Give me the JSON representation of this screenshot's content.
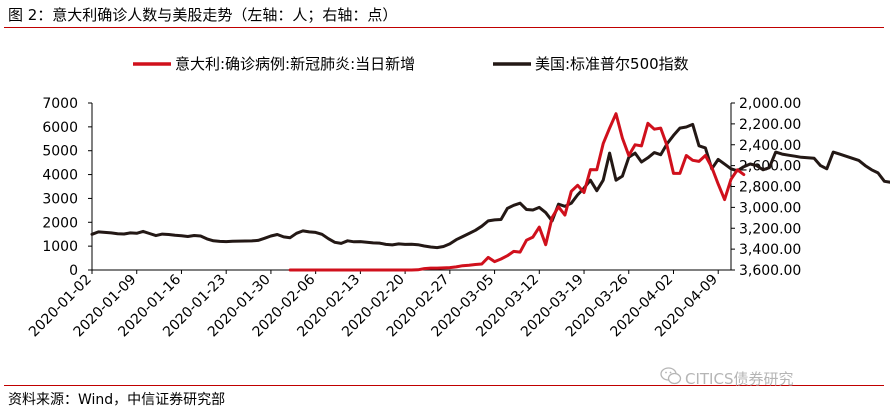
{
  "figure_title": "图 2：意大利确诊人数与美股走势（左轴：人；右轴：点）",
  "source_text": "资料来源：Wind，中信证券研究部",
  "watermark_text": "CITICS债券研究",
  "colors": {
    "accent_rule": "#c00000",
    "italy": "#d0101c",
    "sp500": "#231815"
  },
  "chart_data": {
    "type": "line",
    "legend_position": "top",
    "categories": [
      "2020-01-02",
      "2020-01-09",
      "2020-01-16",
      "2020-01-23",
      "2020-01-30",
      "2020-02-06",
      "2020-02-13",
      "2020-02-20",
      "2020-02-27",
      "2020-03-05",
      "2020-03-12",
      "2020-03-19",
      "2020-03-26",
      "2020-04-02",
      "2020-04-09"
    ],
    "x_start": "2020-01-02",
    "x_end": "2020-04-11",
    "left_axis": {
      "min": 0,
      "max": 7000,
      "ticks": [
        "0",
        "1000",
        "2000",
        "3000",
        "4000",
        "5000",
        "6000",
        "7000"
      ],
      "unit": "人"
    },
    "right_axis": {
      "min": 2000,
      "max": 3600,
      "inverted": true,
      "ticks": [
        "2,000.00",
        "2,200.00",
        "2,400.00",
        "2,600.00",
        "2,800.00",
        "3,000.00",
        "3,200.00",
        "3,400.00",
        "3,600.00"
      ],
      "unit": "点"
    },
    "series": [
      {
        "name": "意大利:确诊病例:新冠肺炎:当日新增",
        "axis": "left",
        "points": [
          [
            31,
            0
          ],
          [
            32,
            0
          ],
          [
            33,
            0
          ],
          [
            34,
            0
          ],
          [
            35,
            0
          ],
          [
            36,
            0
          ],
          [
            37,
            0
          ],
          [
            38,
            0
          ],
          [
            39,
            0
          ],
          [
            40,
            0
          ],
          [
            41,
            0
          ],
          [
            42,
            0
          ],
          [
            43,
            0
          ],
          [
            44,
            0
          ],
          [
            45,
            0
          ],
          [
            46,
            0
          ],
          [
            47,
            0
          ],
          [
            48,
            0
          ],
          [
            49,
            0
          ],
          [
            50,
            0
          ],
          [
            51,
            10
          ],
          [
            52,
            60
          ],
          [
            53,
            80
          ],
          [
            54,
            80
          ],
          [
            55,
            90
          ],
          [
            56,
            100
          ],
          [
            57,
            130
          ],
          [
            58,
            180
          ],
          [
            59,
            200
          ],
          [
            60,
            230
          ],
          [
            61,
            250
          ],
          [
            62,
            530
          ],
          [
            63,
            350
          ],
          [
            64,
            460
          ],
          [
            65,
            600
          ],
          [
            66,
            780
          ],
          [
            67,
            750
          ],
          [
            68,
            1250
          ],
          [
            69,
            1380
          ],
          [
            70,
            1800
          ],
          [
            71,
            1060
          ],
          [
            72,
            2200
          ],
          [
            73,
            2650
          ],
          [
            74,
            2300
          ],
          [
            75,
            3300
          ],
          [
            76,
            3550
          ],
          [
            77,
            3250
          ],
          [
            78,
            4210
          ],
          [
            79,
            4200
          ],
          [
            80,
            5300
          ],
          [
            81,
            5950
          ],
          [
            82,
            6550
          ],
          [
            83,
            5530
          ],
          [
            84,
            4800
          ],
          [
            85,
            5250
          ],
          [
            86,
            5200
          ],
          [
            87,
            6150
          ],
          [
            88,
            5900
          ],
          [
            89,
            5950
          ],
          [
            90,
            5200
          ],
          [
            91,
            4050
          ],
          [
            92,
            4050
          ],
          [
            93,
            4800
          ],
          [
            94,
            4600
          ],
          [
            95,
            4550
          ],
          [
            96,
            4800
          ],
          [
            97,
            4300
          ],
          [
            98,
            3600
          ],
          [
            99,
            2950
          ],
          [
            100,
            3800
          ],
          [
            101,
            4200
          ],
          [
            102,
            4000
          ]
        ]
      },
      {
        "name": "美国:标准普尔500指数",
        "axis": "right",
        "points": [
          [
            0,
            3258
          ],
          [
            1,
            3235
          ],
          [
            2,
            3240
          ],
          [
            3,
            3245
          ],
          [
            4,
            3252
          ],
          [
            5,
            3255
          ],
          [
            6,
            3245
          ],
          [
            7,
            3248
          ],
          [
            8,
            3230
          ],
          [
            9,
            3250
          ],
          [
            10,
            3270
          ],
          [
            11,
            3256
          ],
          [
            12,
            3260
          ],
          [
            13,
            3268
          ],
          [
            14,
            3271
          ],
          [
            15,
            3279
          ],
          [
            16,
            3269
          ],
          [
            17,
            3274
          ],
          [
            18,
            3302
          ],
          [
            19,
            3320
          ],
          [
            20,
            3326
          ],
          [
            21,
            3328
          ],
          [
            22,
            3324
          ],
          [
            23,
            3323
          ],
          [
            24,
            3322
          ],
          [
            25,
            3321
          ],
          [
            26,
            3316
          ],
          [
            27,
            3296
          ],
          [
            28,
            3274
          ],
          [
            29,
            3260
          ],
          [
            30,
            3283
          ],
          [
            31,
            3291
          ],
          [
            32,
            3248
          ],
          [
            33,
            3225
          ],
          [
            34,
            3235
          ],
          [
            35,
            3240
          ],
          [
            36,
            3258
          ],
          [
            37,
            3300
          ],
          [
            38,
            3335
          ],
          [
            39,
            3345
          ],
          [
            40,
            3320
          ],
          [
            41,
            3330
          ],
          [
            42,
            3328
          ],
          [
            43,
            3335
          ],
          [
            44,
            3340
          ],
          [
            45,
            3342
          ],
          [
            46,
            3355
          ],
          [
            47,
            3360
          ],
          [
            48,
            3350
          ],
          [
            49,
            3355
          ],
          [
            50,
            3353
          ],
          [
            51,
            3358
          ],
          [
            52,
            3370
          ],
          [
            53,
            3380
          ],
          [
            54,
            3385
          ],
          [
            55,
            3375
          ],
          [
            56,
            3350
          ],
          [
            57,
            3310
          ],
          [
            58,
            3280
          ],
          [
            59,
            3250
          ],
          [
            60,
            3220
          ],
          [
            61,
            3180
          ],
          [
            62,
            3130
          ],
          [
            63,
            3120
          ],
          [
            64,
            3116
          ],
          [
            65,
            3010
          ],
          [
            66,
            2980
          ],
          [
            67,
            2960
          ],
          [
            68,
            3020
          ],
          [
            69,
            3025
          ],
          [
            70,
            3000
          ],
          [
            71,
            3050
          ],
          [
            72,
            3130
          ],
          [
            73,
            2970
          ],
          [
            74,
            2990
          ],
          [
            75,
            2960
          ],
          [
            76,
            2880
          ],
          [
            77,
            2815
          ],
          [
            78,
            2740
          ],
          [
            79,
            2840
          ],
          [
            80,
            2740
          ],
          [
            81,
            2480
          ],
          [
            82,
            2740
          ],
          [
            83,
            2700
          ],
          [
            84,
            2520
          ],
          [
            85,
            2480
          ],
          [
            86,
            2565
          ],
          [
            87,
            2525
          ],
          [
            88,
            2475
          ],
          [
            89,
            2495
          ],
          [
            90,
            2390
          ],
          [
            91,
            2310
          ],
          [
            92,
            2240
          ],
          [
            93,
            2230
          ],
          [
            94,
            2205
          ],
          [
            95,
            2410
          ],
          [
            96,
            2430
          ],
          [
            97,
            2630
          ],
          [
            98,
            2540
          ],
          [
            99,
            2585
          ],
          [
            100,
            2630
          ],
          [
            101,
            2650
          ],
          [
            102,
            2610
          ],
          [
            103,
            2584
          ],
          [
            104,
            2600
          ],
          [
            105,
            2640
          ],
          [
            106,
            2620
          ],
          [
            107,
            2470
          ],
          [
            108,
            2490
          ],
          [
            109,
            2500
          ],
          [
            110,
            2510
          ],
          [
            111,
            2520
          ],
          [
            112,
            2525
          ],
          [
            113,
            2530
          ],
          [
            114,
            2600
          ],
          [
            115,
            2630
          ],
          [
            116,
            2470
          ],
          [
            117,
            2490
          ],
          [
            118,
            2510
          ],
          [
            119,
            2530
          ],
          [
            120,
            2550
          ],
          [
            121,
            2600
          ],
          [
            122,
            2640
          ],
          [
            123,
            2670
          ],
          [
            124,
            2750
          ],
          [
            125,
            2760
          ],
          [
            126,
            2790
          ],
          [
            127,
            2780
          ],
          [
            128,
            2770
          ],
          [
            129,
            2800
          ],
          [
            130,
            2820
          ],
          [
            131,
            2850
          ],
          [
            132,
            2870
          ],
          [
            133,
            2790
          ],
          [
            134,
            2760
          ],
          [
            135,
            2750
          ],
          [
            136,
            2770
          ],
          [
            137,
            2800
          ],
          [
            138,
            2820
          ],
          [
            139,
            2760
          ]
        ]
      }
    ]
  }
}
